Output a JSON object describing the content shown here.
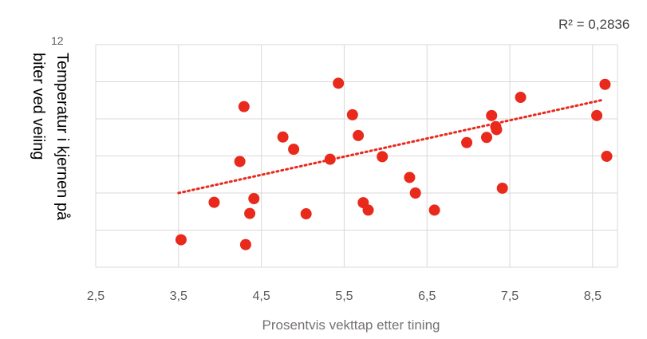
{
  "chart_data": {
    "type": "scatter",
    "title": "",
    "xlabel": "Prosentvis vekttap etter tining",
    "ylabel_line1": "Temperatur i kjernen på",
    "ylabel_line2": "biter ved veiing",
    "xlim": [
      2.5,
      8.8
    ],
    "ylim": [
      6,
      12
    ],
    "x_ticks": [
      2.5,
      3.5,
      4.5,
      5.5,
      6.5,
      7.5,
      8.5
    ],
    "x_tick_labels": [
      "2,5",
      "3,5",
      "4,5",
      "5,5",
      "6,5",
      "7,5",
      "8,5"
    ],
    "y_tick_label_partial": "12",
    "grid": true,
    "trendline": {
      "type": "linear",
      "style": "dotted",
      "x_range": [
        3.5,
        8.6
      ],
      "y_start": 8.0,
      "y_end": 10.5
    },
    "r_squared_label": "R² = 0,2836",
    "colors": {
      "points": "#e8291c",
      "trendline": "#e8291c",
      "grid": "#d9d9d9"
    },
    "x": [
      3.53,
      3.93,
      4.24,
      4.29,
      4.31,
      4.36,
      4.41,
      4.76,
      4.89,
      5.04,
      5.33,
      5.43,
      5.6,
      5.67,
      5.73,
      5.79,
      5.96,
      6.29,
      6.36,
      6.59,
      6.98,
      7.22,
      7.28,
      7.33,
      7.34,
      7.41,
      7.63,
      8.55,
      8.65,
      8.67
    ],
    "y": [
      6.74,
      7.75,
      8.85,
      10.33,
      6.61,
      7.45,
      7.85,
      9.51,
      9.18,
      7.44,
      8.91,
      10.96,
      10.11,
      9.55,
      7.74,
      7.54,
      8.98,
      8.42,
      8.0,
      7.54,
      9.36,
      9.5,
      10.09,
      9.79,
      9.71,
      8.13,
      10.58,
      10.09,
      10.93,
      8.99
    ]
  }
}
